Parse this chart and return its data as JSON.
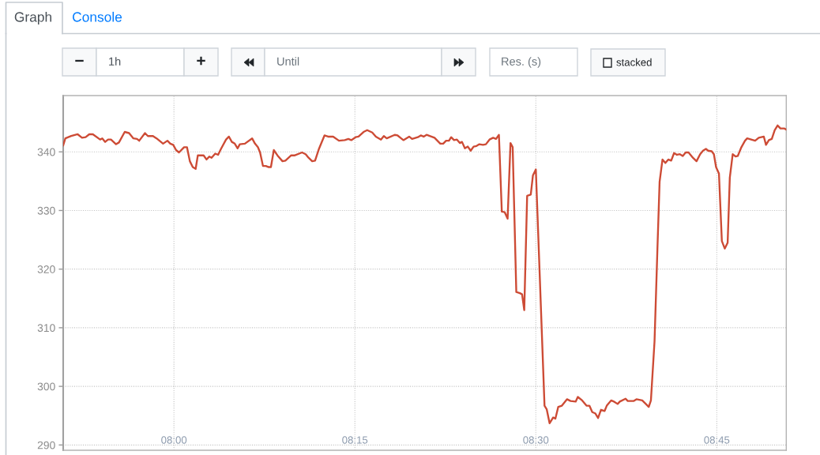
{
  "chart_data": {
    "type": "line",
    "x": [
      7.847,
      7.85,
      7.858,
      7.867,
      7.873,
      7.878,
      7.883,
      7.888,
      7.898,
      7.901,
      7.905,
      7.909,
      7.913,
      7.92,
      7.924,
      7.932,
      7.938,
      7.944,
      7.949,
      7.952,
      7.96,
      7.964,
      7.971,
      7.976,
      7.985,
      7.991,
      7.995,
      7.999,
      8.003,
      8.007,
      8.014,
      8.018,
      8.022,
      8.026,
      8.03,
      8.033,
      8.041,
      8.045,
      8.049,
      8.052,
      8.057,
      8.061,
      8.065,
      8.072,
      8.076,
      8.08,
      8.084,
      8.088,
      8.091,
      8.098,
      8.108,
      8.112,
      8.116,
      8.119,
      8.123,
      8.127,
      8.131,
      8.134,
      8.138,
      8.143,
      8.15,
      8.154,
      8.162,
      8.167,
      8.177,
      8.182,
      8.186,
      8.191,
      8.195,
      8.2,
      8.208,
      8.213,
      8.22,
      8.228,
      8.236,
      8.241,
      8.245,
      8.251,
      8.255,
      8.262,
      8.267,
      8.274,
      8.279,
      8.286,
      8.29,
      8.294,
      8.305,
      8.309,
      8.317,
      8.325,
      8.329,
      8.337,
      8.341,
      8.345,
      8.349,
      8.36,
      8.368,
      8.372,
      8.376,
      8.38,
      8.383,
      8.387,
      8.391,
      8.395,
      8.398,
      8.402,
      8.406,
      8.41,
      8.414,
      8.418,
      8.422,
      8.427,
      8.431,
      8.436,
      8.441,
      8.445,
      8.449,
      8.453,
      8.457,
      8.461,
      8.465,
      8.468,
      8.473,
      8.478,
      8.481,
      8.484,
      8.488,
      8.493,
      8.496,
      8.5,
      8.512,
      8.515,
      8.519,
      8.524,
      8.527,
      8.531,
      8.536,
      8.543,
      8.548,
      8.555,
      8.558,
      8.564,
      8.57,
      8.574,
      8.578,
      8.582,
      8.586,
      8.59,
      8.595,
      8.598,
      8.604,
      8.608,
      8.613,
      8.616,
      8.624,
      8.627,
      8.635,
      8.639,
      8.647,
      8.652,
      8.656,
      8.659,
      8.664,
      8.668,
      8.671,
      8.675,
      8.679,
      8.683,
      8.687,
      8.691,
      8.695,
      8.699,
      8.703,
      8.707,
      8.711,
      8.717,
      8.722,
      8.727,
      8.731,
      8.735,
      8.738,
      8.743,
      8.746,
      8.749,
      8.753,
      8.757,
      8.761,
      8.765,
      8.768,
      8.772,
      8.776,
      8.779,
      8.784,
      8.789,
      8.792,
      8.803,
      8.808,
      8.815,
      8.818,
      8.822,
      8.826,
      8.83,
      8.834,
      8.838,
      8.843,
      8.846
    ],
    "series": [
      {
        "color": "#cd4b35",
        "values": [
          341.1,
          342.3,
          342.7,
          343.0,
          342.4,
          342.5,
          343.0,
          343.0,
          342.1,
          342.3,
          341.7,
          342.1,
          342.1,
          341.3,
          341.6,
          343.4,
          343.2,
          342.3,
          342.2,
          341.9,
          343.2,
          342.7,
          342.7,
          342.3,
          341.4,
          341.9,
          341.4,
          341.2,
          340.3,
          339.9,
          340.8,
          340.8,
          338.4,
          337.4,
          337.1,
          339.4,
          339.4,
          338.7,
          339.2,
          339.0,
          339.7,
          339.5,
          340.5,
          342.1,
          342.6,
          341.7,
          341.4,
          340.6,
          341.3,
          341.4,
          342.3,
          341.4,
          340.8,
          339.9,
          337.6,
          337.6,
          337.4,
          337.4,
          340.3,
          339.4,
          338.4,
          338.5,
          339.4,
          339.4,
          339.9,
          339.6,
          339.0,
          338.4,
          338.5,
          340.4,
          342.8,
          342.6,
          342.6,
          341.9,
          342.0,
          342.2,
          342.0,
          342.5,
          342.6,
          343.4,
          343.7,
          343.3,
          342.6,
          342.1,
          342.7,
          342.3,
          342.9,
          342.8,
          342.0,
          342.6,
          342.2,
          342.5,
          342.8,
          342.6,
          342.9,
          342.4,
          341.4,
          341.4,
          341.9,
          341.9,
          342.5,
          342.0,
          342.1,
          341.5,
          341.7,
          340.6,
          340.9,
          340.2,
          340.9,
          341.0,
          341.3,
          341.2,
          341.3,
          342.1,
          342.4,
          342.2,
          342.9,
          329.8,
          329.7,
          328.6,
          341.5,
          340.8,
          316.1,
          315.9,
          315.7,
          313.0,
          332.5,
          332.7,
          336.0,
          337.0,
          296.7,
          296.1,
          293.7,
          294.7,
          294.5,
          296.5,
          296.7,
          297.8,
          297.5,
          297.4,
          298.2,
          297.6,
          296.7,
          296.7,
          295.6,
          295.4,
          294.6,
          296.0,
          295.8,
          296.7,
          297.6,
          297.4,
          297.0,
          297.4,
          297.9,
          297.5,
          297.5,
          297.8,
          297.6,
          297.0,
          296.5,
          297.6,
          307.7,
          323.5,
          334.9,
          338.7,
          338.1,
          338.7,
          338.5,
          339.8,
          339.5,
          339.6,
          339.3,
          339.9,
          339.9,
          339.0,
          338.4,
          339.6,
          340.2,
          340.5,
          340.2,
          340.1,
          339.6,
          337.4,
          336.3,
          324.8,
          323.5,
          324.5,
          335.6,
          339.6,
          339.2,
          339.3,
          340.8,
          341.9,
          342.3,
          341.9,
          342.4,
          342.6,
          341.2,
          342.0,
          342.2,
          343.7,
          344.5,
          344.0,
          344.0,
          343.8
        ]
      }
    ],
    "xlim": [
      7.847,
      8.846
    ],
    "ylim": [
      289.1,
      349.6
    ],
    "xticks": [
      {
        "value": 8.0,
        "label": "08:00"
      },
      {
        "value": 8.25,
        "label": "08:15"
      },
      {
        "value": 8.5,
        "label": "08:30"
      },
      {
        "value": 8.75,
        "label": "08:45"
      }
    ],
    "yticks": [
      290,
      300,
      310,
      320,
      330,
      340
    ],
    "grid": true,
    "line_style": "solid",
    "annotations": [
      "Graph",
      "Console",
      "−",
      "1h",
      "+",
      "Until",
      "Res. (s)",
      "stacked"
    ]
  }
}
